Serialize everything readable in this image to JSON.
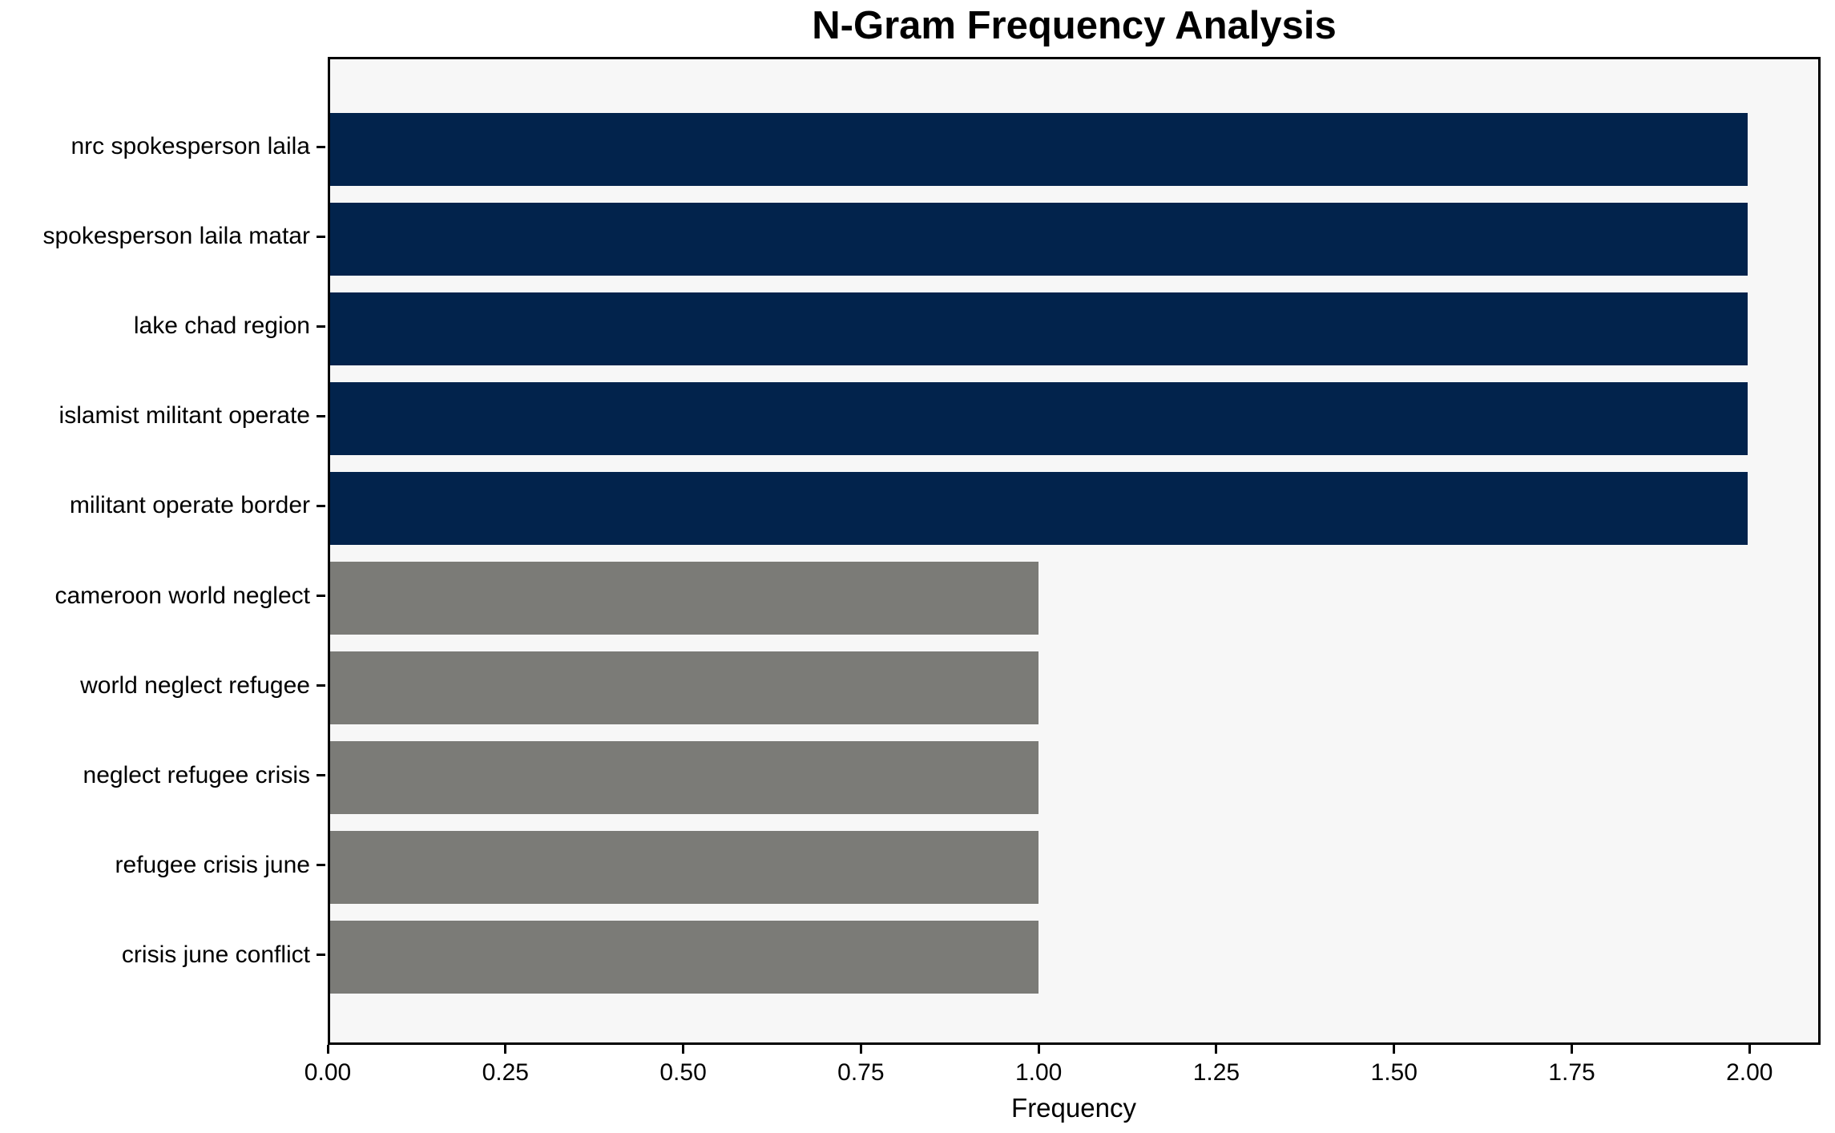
{
  "chart_data": {
    "type": "bar",
    "orientation": "horizontal",
    "title": "N-Gram Frequency Analysis",
    "xlabel": "Frequency",
    "categories": [
      "nrc spokesperson laila",
      "spokesperson laila matar",
      "lake chad region",
      "islamist militant operate",
      "militant operate border",
      "cameroon world neglect",
      "world neglect refugee",
      "neglect refugee crisis",
      "refugee crisis june",
      "crisis june conflict"
    ],
    "values": [
      2,
      2,
      2,
      2,
      2,
      1,
      1,
      1,
      1,
      1
    ],
    "bar_colors": [
      "#02234c",
      "#02234c",
      "#02234c",
      "#02234c",
      "#02234c",
      "#7b7b77",
      "#7b7b77",
      "#7b7b77",
      "#7b7b77",
      "#7b7b77"
    ],
    "xlim": [
      0,
      2.1
    ],
    "xticks": [
      0,
      0.25,
      0.5,
      0.75,
      1.0,
      1.25,
      1.5,
      1.75,
      2.0
    ],
    "xtick_labels": [
      "0.00",
      "0.25",
      "0.50",
      "0.75",
      "1.00",
      "1.25",
      "1.50",
      "1.75",
      "2.00"
    ],
    "colors": {
      "bar_high": "#02234c",
      "bar_low": "#7b7b77",
      "plot_background": "#f7f7f7",
      "figure_background": "#ffffff",
      "spine": "#000000",
      "text": "#000000"
    },
    "grid": false,
    "legend": "none"
  }
}
